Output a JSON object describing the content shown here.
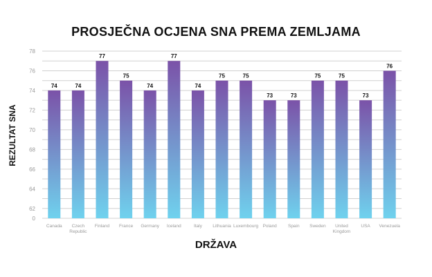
{
  "chart_data": {
    "type": "bar",
    "title": "PROSJEČNA OCJENA SNA PREMA ZEMLJAMA",
    "xlabel": "DRŽAVA",
    "ylabel": "REZULTAT SNA",
    "categories": [
      "Canada",
      "Czech Republic",
      "Finland",
      "France",
      "Germany",
      "Iceland",
      "Italy",
      "Lithuania",
      "Luxembourg",
      "Poland",
      "Spain",
      "Sweden",
      "United Kingdom",
      "USA",
      "Venezuela"
    ],
    "category_lines": [
      [
        "Canada"
      ],
      [
        "Czech",
        "Republic"
      ],
      [
        "Finland"
      ],
      [
        "France"
      ],
      [
        "Germany"
      ],
      [
        "Iceland"
      ],
      [
        "Italy"
      ],
      [
        "Lithuania"
      ],
      [
        "Luxembourg"
      ],
      [
        "Poland"
      ],
      [
        "Spain"
      ],
      [
        "Sweden"
      ],
      [
        "United",
        "Kingdom"
      ],
      [
        "USA"
      ],
      [
        "Venezuela"
      ]
    ],
    "values": [
      74,
      74,
      77,
      75,
      74,
      77,
      74,
      75,
      75,
      73,
      73,
      75,
      75,
      73,
      76
    ],
    "data_labels": [
      "74",
      "74",
      "77",
      "75",
      "74",
      "77",
      "74",
      "75",
      "75",
      "73",
      "73",
      "75",
      "75",
      "73",
      "76"
    ],
    "y_ticks": [
      0,
      62,
      63,
      64,
      65,
      66,
      67,
      68,
      69,
      70,
      71,
      72,
      73,
      74,
      75,
      76,
      77,
      78
    ],
    "y_tick_labels": [
      "0",
      "62",
      "64",
      "66",
      "68",
      "70",
      "72",
      "74",
      "76",
      "78"
    ],
    "grid": true,
    "legend": "none",
    "colors": {
      "bar_top": "#7b52a8",
      "bar_bottom": "#6fd2ee",
      "grid": "#d0d0d0",
      "tick_text": "#9a9a9a",
      "title_text": "#111111",
      "label_text": "#111111"
    }
  }
}
